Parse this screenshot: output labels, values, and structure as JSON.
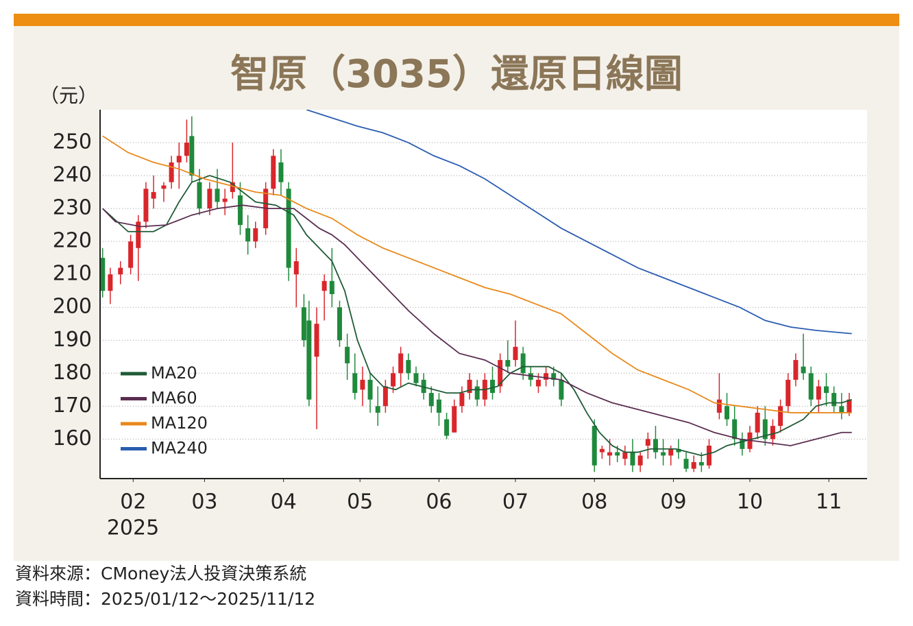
{
  "chart_data": {
    "type": "candlestick",
    "title": "智原（3035）還原日線圖",
    "y_unit": "（元）",
    "year_label": "2025",
    "source": "資料來源：CMoney法人投資決策系統",
    "period": "資料時間：2025/01/12～2025/11/12",
    "xlim": [
      19,
      320
    ],
    "xticks": [
      {
        "value": 32,
        "label": "02"
      },
      {
        "value": 60,
        "label": "03"
      },
      {
        "value": 91,
        "label": "04"
      },
      {
        "value": 121,
        "label": "05"
      },
      {
        "value": 152,
        "label": "06"
      },
      {
        "value": 182,
        "label": "07"
      },
      {
        "value": 213,
        "label": "08"
      },
      {
        "value": 244,
        "label": "09"
      },
      {
        "value": 274,
        "label": "10"
      },
      {
        "value": 305,
        "label": "11"
      }
    ],
    "ylim": [
      148,
      260
    ],
    "yticks": [
      160,
      170,
      180,
      190,
      200,
      210,
      220,
      230,
      240,
      250
    ],
    "grid": true,
    "up_color": "#d9262b",
    "down_color": "#1f8a3c",
    "candles": [
      {
        "x": 20,
        "open": 215,
        "high": 218,
        "low": 203,
        "close": 205
      },
      {
        "x": 23,
        "open": 205,
        "high": 212,
        "low": 201,
        "close": 210
      },
      {
        "x": 27,
        "open": 210,
        "high": 214,
        "low": 207,
        "close": 212
      },
      {
        "x": 31,
        "open": 212,
        "high": 222,
        "low": 210,
        "close": 220
      },
      {
        "x": 34,
        "open": 218,
        "high": 228,
        "low": 208,
        "close": 226
      },
      {
        "x": 37,
        "open": 226,
        "high": 238,
        "low": 224,
        "close": 236
      },
      {
        "x": 40,
        "open": 233,
        "high": 240,
        "low": 230,
        "close": 235
      },
      {
        "x": 44,
        "open": 236,
        "high": 238,
        "low": 232,
        "close": 237
      },
      {
        "x": 47,
        "open": 238,
        "high": 246,
        "low": 236,
        "close": 244
      },
      {
        "x": 50,
        "open": 244,
        "high": 250,
        "low": 236,
        "close": 246
      },
      {
        "x": 53,
        "open": 246,
        "high": 257,
        "low": 244,
        "close": 250
      },
      {
        "x": 55,
        "open": 252,
        "high": 258,
        "low": 238,
        "close": 240
      },
      {
        "x": 58,
        "open": 238,
        "high": 242,
        "low": 228,
        "close": 230
      },
      {
        "x": 62,
        "open": 230,
        "high": 238,
        "low": 228,
        "close": 236
      },
      {
        "x": 65,
        "open": 236,
        "high": 242,
        "low": 230,
        "close": 232
      },
      {
        "x": 68,
        "open": 232,
        "high": 236,
        "low": 228,
        "close": 233
      },
      {
        "x": 71,
        "open": 235,
        "high": 250,
        "low": 233,
        "close": 238
      },
      {
        "x": 74,
        "open": 234,
        "high": 238,
        "low": 222,
        "close": 225
      },
      {
        "x": 77,
        "open": 224,
        "high": 228,
        "low": 216,
        "close": 220
      },
      {
        "x": 80,
        "open": 220,
        "high": 226,
        "low": 218,
        "close": 224
      },
      {
        "x": 84,
        "open": 224,
        "high": 238,
        "low": 222,
        "close": 236
      },
      {
        "x": 87,
        "open": 236,
        "high": 248,
        "low": 234,
        "close": 246
      },
      {
        "x": 90,
        "open": 244,
        "high": 248,
        "low": 234,
        "close": 238
      },
      {
        "x": 93,
        "open": 236,
        "high": 238,
        "low": 208,
        "close": 212
      },
      {
        "x": 96,
        "open": 210,
        "high": 218,
        "low": 200,
        "close": 214
      },
      {
        "x": 99,
        "open": 200,
        "high": 204,
        "low": 188,
        "close": 190
      },
      {
        "x": 101,
        "open": 196,
        "high": 202,
        "low": 170,
        "close": 172
      },
      {
        "x": 104,
        "open": 185,
        "high": 200,
        "low": 163,
        "close": 195
      },
      {
        "x": 107,
        "open": 205,
        "high": 210,
        "low": 196,
        "close": 208
      },
      {
        "x": 110,
        "open": 208,
        "high": 218,
        "low": 200,
        "close": 204
      },
      {
        "x": 113,
        "open": 200,
        "high": 202,
        "low": 188,
        "close": 190
      },
      {
        "x": 116,
        "open": 188,
        "high": 192,
        "low": 178,
        "close": 183
      },
      {
        "x": 119,
        "open": 180,
        "high": 186,
        "low": 172,
        "close": 174
      },
      {
        "x": 122,
        "open": 175,
        "high": 182,
        "low": 170,
        "close": 178
      },
      {
        "x": 125,
        "open": 178,
        "high": 180,
        "low": 168,
        "close": 172
      },
      {
        "x": 128,
        "open": 170,
        "high": 176,
        "low": 164,
        "close": 168
      },
      {
        "x": 131,
        "open": 170,
        "high": 178,
        "low": 168,
        "close": 176
      },
      {
        "x": 134,
        "open": 176,
        "high": 182,
        "low": 174,
        "close": 180
      },
      {
        "x": 137,
        "open": 180,
        "high": 188,
        "low": 176,
        "close": 186
      },
      {
        "x": 140,
        "open": 184,
        "high": 186,
        "low": 178,
        "close": 180
      },
      {
        "x": 143,
        "open": 180,
        "high": 182,
        "low": 176,
        "close": 177
      },
      {
        "x": 146,
        "open": 178,
        "high": 180,
        "low": 172,
        "close": 174
      },
      {
        "x": 149,
        "open": 174,
        "high": 176,
        "low": 168,
        "close": 170
      },
      {
        "x": 152,
        "open": 172,
        "high": 174,
        "low": 164,
        "close": 168
      },
      {
        "x": 155,
        "open": 166,
        "high": 168,
        "low": 160,
        "close": 161
      },
      {
        "x": 158,
        "open": 162,
        "high": 172,
        "low": 162,
        "close": 170
      },
      {
        "x": 161,
        "open": 170,
        "high": 176,
        "low": 168,
        "close": 174
      },
      {
        "x": 164,
        "open": 174,
        "high": 180,
        "low": 172,
        "close": 178
      },
      {
        "x": 167,
        "open": 176,
        "high": 178,
        "low": 170,
        "close": 172
      },
      {
        "x": 170,
        "open": 172,
        "high": 180,
        "low": 170,
        "close": 178
      },
      {
        "x": 173,
        "open": 178,
        "high": 182,
        "low": 172,
        "close": 174
      },
      {
        "x": 176,
        "open": 176,
        "high": 186,
        "low": 174,
        "close": 184
      },
      {
        "x": 179,
        "open": 184,
        "high": 190,
        "low": 180,
        "close": 182
      },
      {
        "x": 182,
        "open": 184,
        "high": 196,
        "low": 182,
        "close": 188
      },
      {
        "x": 185,
        "open": 186,
        "high": 188,
        "low": 178,
        "close": 180
      },
      {
        "x": 188,
        "open": 180,
        "high": 182,
        "low": 176,
        "close": 178
      },
      {
        "x": 191,
        "open": 176,
        "high": 180,
        "low": 174,
        "close": 178
      },
      {
        "x": 194,
        "open": 178,
        "high": 182,
        "low": 176,
        "close": 180
      },
      {
        "x": 197,
        "open": 180,
        "high": 182,
        "low": 176,
        "close": 178
      },
      {
        "x": 200,
        "open": 178,
        "high": 180,
        "low": 170,
        "close": 172
      },
      {
        "x": 213,
        "open": 164,
        "high": 166,
        "low": 150,
        "close": 152
      },
      {
        "x": 216,
        "open": 156,
        "high": 158,
        "low": 154,
        "close": 157
      },
      {
        "x": 219,
        "open": 155,
        "high": 160,
        "low": 152,
        "close": 156
      },
      {
        "x": 222,
        "open": 156,
        "high": 158,
        "low": 153,
        "close": 155
      },
      {
        "x": 225,
        "open": 154,
        "high": 158,
        "low": 152,
        "close": 156
      },
      {
        "x": 228,
        "open": 156,
        "high": 160,
        "low": 150,
        "close": 152
      },
      {
        "x": 231,
        "open": 152,
        "high": 156,
        "low": 150,
        "close": 155
      },
      {
        "x": 234,
        "open": 158,
        "high": 162,
        "low": 154,
        "close": 160
      },
      {
        "x": 237,
        "open": 160,
        "high": 164,
        "low": 154,
        "close": 156
      },
      {
        "x": 240,
        "open": 156,
        "high": 160,
        "low": 152,
        "close": 155
      },
      {
        "x": 243,
        "open": 155,
        "high": 158,
        "low": 152,
        "close": 157
      },
      {
        "x": 246,
        "open": 157,
        "high": 160,
        "low": 154,
        "close": 156
      },
      {
        "x": 249,
        "open": 154,
        "high": 156,
        "low": 150,
        "close": 151
      },
      {
        "x": 252,
        "open": 151,
        "high": 155,
        "low": 150,
        "close": 153
      },
      {
        "x": 255,
        "open": 153,
        "high": 156,
        "low": 150,
        "close": 152
      },
      {
        "x": 258,
        "open": 152,
        "high": 160,
        "low": 151,
        "close": 158
      },
      {
        "x": 262,
        "open": 168,
        "high": 180,
        "low": 166,
        "close": 172
      },
      {
        "x": 265,
        "open": 170,
        "high": 174,
        "low": 164,
        "close": 166
      },
      {
        "x": 268,
        "open": 166,
        "high": 170,
        "low": 158,
        "close": 160
      },
      {
        "x": 271,
        "open": 160,
        "high": 162,
        "low": 155,
        "close": 157
      },
      {
        "x": 274,
        "open": 157,
        "high": 164,
        "low": 156,
        "close": 162
      },
      {
        "x": 277,
        "open": 162,
        "high": 170,
        "low": 160,
        "close": 168
      },
      {
        "x": 280,
        "open": 166,
        "high": 170,
        "low": 158,
        "close": 160
      },
      {
        "x": 283,
        "open": 160,
        "high": 166,
        "low": 158,
        "close": 164
      },
      {
        "x": 286,
        "open": 164,
        "high": 172,
        "low": 162,
        "close": 170
      },
      {
        "x": 289,
        "open": 170,
        "high": 180,
        "low": 168,
        "close": 178
      },
      {
        "x": 292,
        "open": 178,
        "high": 186,
        "low": 176,
        "close": 184
      },
      {
        "x": 295,
        "open": 182,
        "high": 192,
        "low": 178,
        "close": 180
      },
      {
        "x": 298,
        "open": 180,
        "high": 182,
        "low": 170,
        "close": 172
      },
      {
        "x": 301,
        "open": 172,
        "high": 178,
        "low": 168,
        "close": 176
      },
      {
        "x": 304,
        "open": 176,
        "high": 180,
        "low": 170,
        "close": 174
      },
      {
        "x": 307,
        "open": 174,
        "high": 176,
        "low": 168,
        "close": 170
      },
      {
        "x": 310,
        "open": 170,
        "high": 174,
        "low": 166,
        "close": 168
      },
      {
        "x": 313,
        "open": 168,
        "high": 174,
        "low": 167,
        "close": 172
      }
    ],
    "series": [
      {
        "name": "MA20",
        "color": "#1e5a35",
        "x": [
          20,
          30,
          40,
          45,
          50,
          55,
          62,
          70,
          80,
          88,
          95,
          100,
          105,
          110,
          115,
          120,
          125,
          130,
          135,
          140,
          145,
          150,
          155,
          160,
          165,
          170,
          175,
          180,
          185,
          190,
          195,
          200,
          205,
          210,
          215,
          220,
          225,
          230,
          235,
          240,
          245,
          250,
          255,
          260,
          265,
          270,
          275,
          280,
          285,
          290,
          295,
          300,
          305,
          310,
          314
        ],
        "values": [
          230,
          223,
          223,
          225,
          232,
          238,
          240,
          238,
          232,
          231,
          228,
          222,
          218,
          214,
          205,
          190,
          180,
          176,
          175,
          177,
          176,
          175,
          174,
          174,
          175,
          175,
          176,
          180,
          182,
          182,
          182,
          180,
          175,
          168,
          162,
          158,
          156,
          156,
          157,
          157,
          157,
          156,
          155,
          156,
          158,
          159,
          160,
          161,
          162,
          164,
          166,
          170,
          171,
          171,
          172
        ]
      },
      {
        "name": "MA60",
        "color": "#5a2d50",
        "x": [
          20,
          25,
          35,
          45,
          55,
          65,
          75,
          85,
          95,
          100,
          105,
          110,
          115,
          120,
          130,
          140,
          150,
          160,
          170,
          180,
          190,
          200,
          210,
          220,
          230,
          240,
          250,
          260,
          270,
          280,
          290,
          300,
          310,
          314
        ],
        "values": [
          230,
          226,
          224.5,
          225,
          228,
          230,
          231,
          230,
          230,
          227,
          224,
          222,
          219,
          215,
          207,
          199,
          192,
          186,
          184,
          180,
          179,
          178,
          174,
          171,
          169,
          167,
          165,
          162,
          160,
          159,
          158,
          160,
          162,
          162
        ]
      },
      {
        "name": "MA120",
        "color": "#e8891c",
        "x": [
          20,
          30,
          40,
          50,
          60,
          70,
          80,
          90,
          100,
          110,
          120,
          130,
          140,
          150,
          160,
          170,
          180,
          190,
          200,
          210,
          220,
          230,
          240,
          250,
          260,
          270,
          280,
          290,
          300,
          310,
          314
        ],
        "values": [
          252,
          247,
          244,
          242,
          239,
          237,
          235,
          234,
          230,
          227,
          222,
          218,
          215,
          212,
          209,
          206,
          204,
          201,
          198,
          192,
          186,
          181,
          178,
          175,
          171,
          170,
          169,
          168,
          168,
          168,
          168
        ]
      },
      {
        "name": "MA240",
        "color": "#2a5cb0",
        "x": [
          100,
          110,
          120,
          130,
          140,
          150,
          160,
          170,
          180,
          190,
          200,
          210,
          220,
          230,
          240,
          250,
          260,
          270,
          280,
          290,
          300,
          314
        ],
        "values": [
          260,
          257.5,
          255,
          253,
          250,
          246,
          243,
          239,
          234,
          229,
          224,
          220,
          216,
          212,
          209,
          206,
          203,
          200,
          196,
          194,
          193,
          192
        ]
      }
    ]
  }
}
